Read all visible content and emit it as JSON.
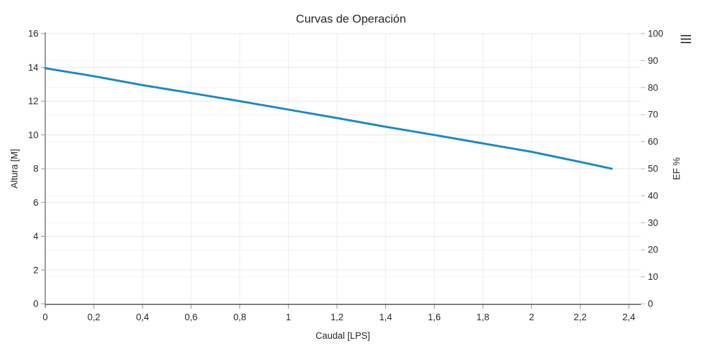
{
  "chart": {
    "menu_icon": "hamburger-menu",
    "colors": {
      "line": "#1b87c6",
      "grid_left_axis": "#e7e7e7",
      "grid_right_axis": "#f2f2f2",
      "grid_vertical": "#ededed",
      "axis_line_left": "#9a9a9a",
      "axis_line_bottom": "#555555",
      "tick": "#8f8f8f",
      "tick_right": "#b5b5b5",
      "label_text": "#262626"
    }
  },
  "chart_data": {
    "type": "line",
    "title": "Curvas de Operación",
    "xlabel": "Caudal [LPS]",
    "ylabel_left": "Altura [M]",
    "ylabel_right": "EF %",
    "xlim": [
      0,
      2.45
    ],
    "ylim_left": [
      0,
      16
    ],
    "ylim_right": [
      0,
      100
    ],
    "grid": true,
    "legend_position": "none",
    "x_tick_values": [
      0,
      0.2,
      0.4,
      0.6,
      0.8,
      1.0,
      1.2,
      1.4,
      1.6,
      1.8,
      2.0,
      2.2,
      2.4
    ],
    "x_tick_labels": [
      "0",
      "0,2",
      "0,4",
      "0,6",
      "0,8",
      "1",
      "1,2",
      "1,4",
      "1,6",
      "1,8",
      "2",
      "2,2",
      "2,4"
    ],
    "y_left_tick_values": [
      0,
      2,
      4,
      6,
      8,
      10,
      12,
      14,
      16
    ],
    "y_left_tick_labels": [
      "0",
      "2",
      "4",
      "6",
      "8",
      "10",
      "12",
      "14",
      "16"
    ],
    "y_right_tick_values": [
      0,
      10,
      20,
      30,
      40,
      50,
      60,
      70,
      80,
      90,
      100
    ],
    "y_right_tick_labels": [
      "0",
      "10",
      "20",
      "30",
      "40",
      "50",
      "60",
      "70",
      "80",
      "90",
      "100"
    ],
    "series": [
      {
        "name": "Altura",
        "axis": "left",
        "color": "#1b87c6",
        "x": [
          0,
          0.2,
          0.4,
          0.6,
          0.8,
          1.0,
          1.2,
          1.4,
          1.6,
          1.8,
          2.0,
          2.2,
          2.33
        ],
        "y": [
          13.95,
          13.48,
          12.95,
          12.48,
          12.0,
          11.5,
          11.0,
          10.48,
          10.0,
          9.5,
          9.0,
          8.4,
          8.0
        ]
      }
    ]
  }
}
